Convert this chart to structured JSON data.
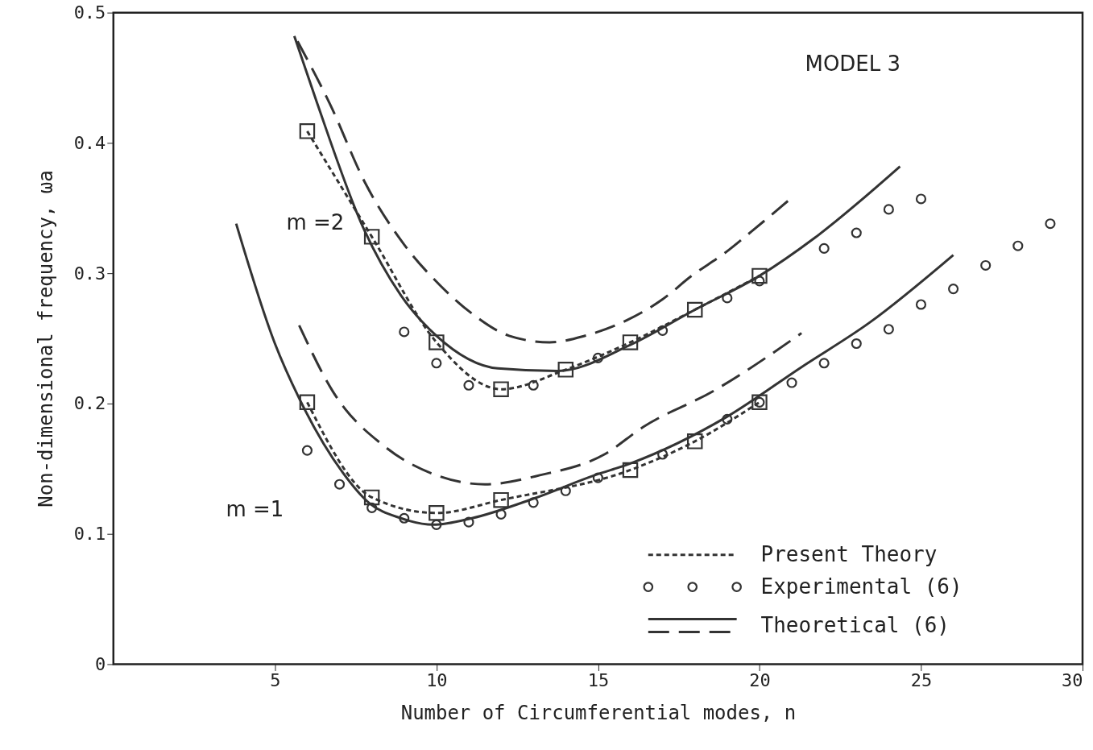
{
  "chart_data": {
    "type": "line",
    "xlabel": "Number of Circumferential modes, n",
    "ylabel": "Non-dimensional frequency, ωa",
    "xlim": [
      0,
      30
    ],
    "ylim": [
      0,
      0.5
    ],
    "xticks": [
      5,
      10,
      15,
      20,
      25,
      30
    ],
    "yticks": [
      0,
      0.1,
      0.2,
      0.3,
      0.4,
      0.5
    ],
    "legend": "bottom right",
    "annotations": [
      "MODEL 3",
      "m =2",
      "m =1"
    ],
    "series": [
      {
        "name": "Present Theory",
        "line_style": "dotted",
        "marker": "square",
        "color": "#333333",
        "x": [
          6,
          8,
          10,
          12,
          14,
          16,
          18,
          20
        ],
        "values": [
          0.409,
          0.328,
          0.247,
          0.211,
          0.226,
          0.247,
          0.272,
          0.298
        ]
      },
      {
        "line_style": "dotted",
        "marker": "square",
        "color": "#333333",
        "x": [
          6,
          8,
          10,
          12,
          16,
          18,
          20
        ],
        "values": [
          0.201,
          0.128,
          0.116,
          0.126,
          0.149,
          0.171,
          0.201
        ]
      },
      {
        "name": "Experimental (6)",
        "type": "scatter",
        "marker": "circle",
        "color": "#333333",
        "x": [
          9,
          10,
          11,
          13,
          15,
          17,
          19,
          20,
          22,
          23,
          24,
          25
        ],
        "values": [
          0.255,
          0.231,
          0.214,
          0.214,
          0.235,
          0.256,
          0.281,
          0.294,
          0.319,
          0.331,
          0.349,
          0.357
        ]
      },
      {
        "type": "scatter",
        "marker": "circle",
        "color": "#333333",
        "x": [
          6,
          7,
          8,
          9,
          10,
          11,
          12,
          13,
          14,
          15,
          17,
          19,
          20,
          21,
          22,
          23,
          24,
          25,
          26,
          27,
          28,
          29
        ],
        "values": [
          0.164,
          0.138,
          0.12,
          0.112,
          0.107,
          0.109,
          0.115,
          0.124,
          0.133,
          0.143,
          0.161,
          0.188,
          0.201,
          0.216,
          0.231,
          0.246,
          0.257,
          0.276,
          0.288,
          0.306,
          0.321,
          0.338
        ]
      },
      {
        "name": "Theoretical (6)",
        "line_style": "solid",
        "color": "#333333",
        "x": [
          5.6,
          6.3,
          7.75,
          8.9,
          10,
          11.9,
          13.75,
          16,
          18,
          20,
          21.7,
          24.35
        ],
        "values": [
          0.482,
          0.431,
          0.334,
          0.283,
          0.252,
          0.227,
          0.225,
          0.245,
          0.272,
          0.298,
          0.327,
          0.382
        ]
      },
      {
        "line_style": "dashed",
        "color": "#333333",
        "x": [
          5.7,
          6.7,
          7.8,
          9,
          10.1,
          11.1,
          12.25,
          13.5,
          14.6,
          15.9,
          17,
          17.9,
          18.9,
          19.75,
          21
        ],
        "values": [
          0.478,
          0.43,
          0.369,
          0.322,
          0.291,
          0.269,
          0.252,
          0.247,
          0.252,
          0.264,
          0.28,
          0.298,
          0.315,
          0.332,
          0.358
        ]
      },
      {
        "line_style": "solid",
        "color": "#333333",
        "x": [
          3.8,
          5,
          5.75,
          7.1,
          7.9,
          8.9,
          9.9,
          11.1,
          13,
          14.9,
          16,
          19,
          21.3,
          23.4,
          26
        ],
        "values": [
          0.338,
          0.246,
          0.204,
          0.147,
          0.124,
          0.112,
          0.107,
          0.112,
          0.127,
          0.145,
          0.154,
          0.19,
          0.228,
          0.262,
          0.314
        ]
      },
      {
        "line_style": "dashed",
        "color": "#333333",
        "x": [
          5.75,
          6.8,
          8.4,
          10,
          11.5,
          13.2,
          15.2,
          16.4,
          18.6,
          21.3
        ],
        "values": [
          0.26,
          0.209,
          0.167,
          0.145,
          0.138,
          0.145,
          0.161,
          0.182,
          0.21,
          0.254
        ]
      }
    ]
  }
}
